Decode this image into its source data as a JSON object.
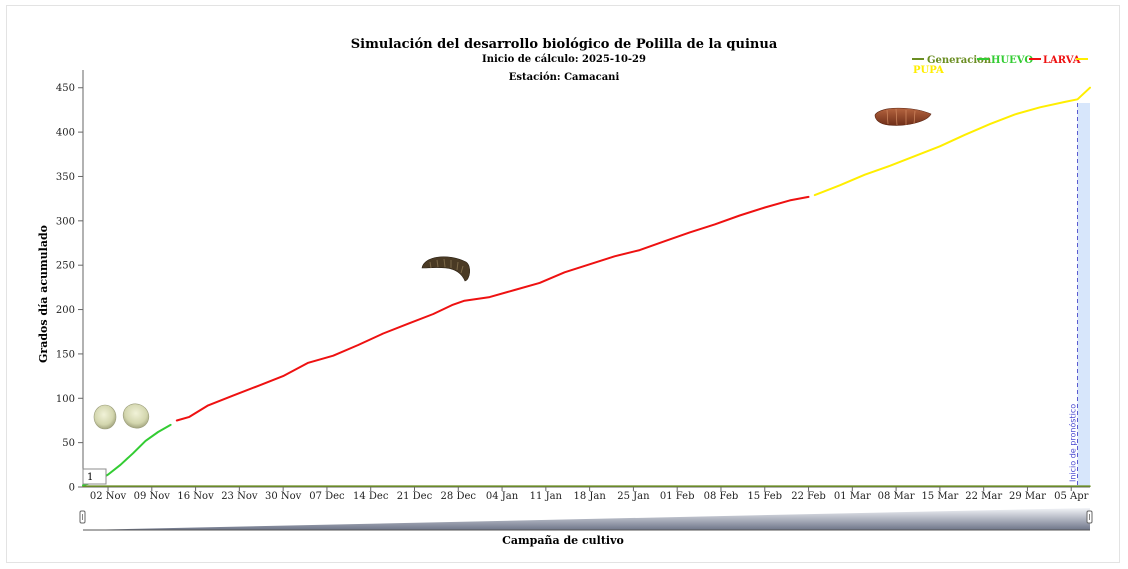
{
  "chart_data": {
    "type": "line",
    "title": "Simulación del desarrollo biológico de Polilla de la quinua",
    "subtitles": [
      "Inicio de cálculo: 2025-10-29",
      "Estación: Camacani"
    ],
    "xlabel": "Campaña de cultivo",
    "ylabel": "Grados día acumulado",
    "ylim": [
      0,
      470
    ],
    "yticks": [
      0,
      50,
      100,
      150,
      200,
      250,
      300,
      350,
      400,
      450
    ],
    "x_range": [
      "2025-10-29",
      "2026-04-08"
    ],
    "x_tick_labels": [
      "02 Nov",
      "09 Nov",
      "16 Nov",
      "23 Nov",
      "30 Nov",
      "07 Dec",
      "14 Dec",
      "21 Dec",
      "28 Dec",
      "04 Jan",
      "11 Jan",
      "18 Jan",
      "25 Jan",
      "01 Feb",
      "08 Feb",
      "15 Feb",
      "22 Feb",
      "01 Mar",
      "08 Mar",
      "15 Mar",
      "22 Mar",
      "29 Mar",
      "05 Apr"
    ],
    "x_tick_dates": [
      "2025-11-02",
      "2025-11-09",
      "2025-11-16",
      "2025-11-23",
      "2025-11-30",
      "2025-12-07",
      "2025-12-14",
      "2025-12-21",
      "2025-12-28",
      "2026-01-04",
      "2026-01-11",
      "2026-01-18",
      "2026-01-25",
      "2026-02-01",
      "2026-02-08",
      "2026-02-15",
      "2026-02-22",
      "2026-03-01",
      "2026-03-08",
      "2026-03-15",
      "2026-03-22",
      "2026-03-29",
      "2026-04-05"
    ],
    "legend": {
      "placement": "top-right",
      "items": [
        "Generacion",
        "HUEVO",
        "LARVA",
        "PUPA"
      ]
    },
    "series": [
      {
        "name": "Generacion",
        "color": "#6b8e23",
        "points": [
          [
            "2025-10-29",
            1
          ],
          [
            "2026-04-08",
            1
          ]
        ]
      },
      {
        "name": "HUEVO",
        "color": "#33cc33",
        "points": [
          [
            "2025-10-29",
            2
          ],
          [
            "2025-10-31",
            6
          ],
          [
            "2025-11-02",
            14
          ],
          [
            "2025-11-04",
            25
          ],
          [
            "2025-11-06",
            38
          ],
          [
            "2025-11-08",
            52
          ],
          [
            "2025-11-10",
            62
          ],
          [
            "2025-11-12",
            70
          ]
        ]
      },
      {
        "name": "LARVA",
        "color": "#ee1111",
        "points": [
          [
            "2025-11-13",
            75
          ],
          [
            "2025-11-15",
            79
          ],
          [
            "2025-11-18",
            92
          ],
          [
            "2025-11-22",
            103
          ],
          [
            "2025-11-26",
            114
          ],
          [
            "2025-11-30",
            125
          ],
          [
            "2025-12-04",
            140
          ],
          [
            "2025-12-08",
            148
          ],
          [
            "2025-12-12",
            160
          ],
          [
            "2025-12-16",
            173
          ],
          [
            "2025-12-20",
            184
          ],
          [
            "2025-12-24",
            195
          ],
          [
            "2025-12-27",
            205
          ],
          [
            "2025-12-29",
            210
          ],
          [
            "2026-01-02",
            214
          ],
          [
            "2026-01-06",
            222
          ],
          [
            "2026-01-10",
            230
          ],
          [
            "2026-01-14",
            242
          ],
          [
            "2026-01-18",
            251
          ],
          [
            "2026-01-22",
            260
          ],
          [
            "2026-01-26",
            267
          ],
          [
            "2026-01-30",
            277
          ],
          [
            "2026-02-03",
            287
          ],
          [
            "2026-02-07",
            296
          ],
          [
            "2026-02-11",
            306
          ],
          [
            "2026-02-15",
            315
          ],
          [
            "2026-02-19",
            323
          ],
          [
            "2026-02-22",
            327
          ]
        ]
      },
      {
        "name": "PUPA",
        "color": "#ffee00",
        "points": [
          [
            "2026-02-23",
            329
          ],
          [
            "2026-02-27",
            340
          ],
          [
            "2026-03-03",
            352
          ],
          [
            "2026-03-07",
            362
          ],
          [
            "2026-03-11",
            373
          ],
          [
            "2026-03-15",
            384
          ],
          [
            "2026-03-19",
            397
          ],
          [
            "2026-03-23",
            409
          ],
          [
            "2026-03-27",
            420
          ],
          [
            "2026-03-31",
            428
          ],
          [
            "2026-04-04",
            434
          ],
          [
            "2026-04-06",
            437
          ],
          [
            "2026-04-08",
            450
          ]
        ]
      }
    ],
    "forecast": {
      "label": "Inicio de pronóstico",
      "start": "2026-04-06"
    },
    "generation_box": "1",
    "grid": false
  }
}
